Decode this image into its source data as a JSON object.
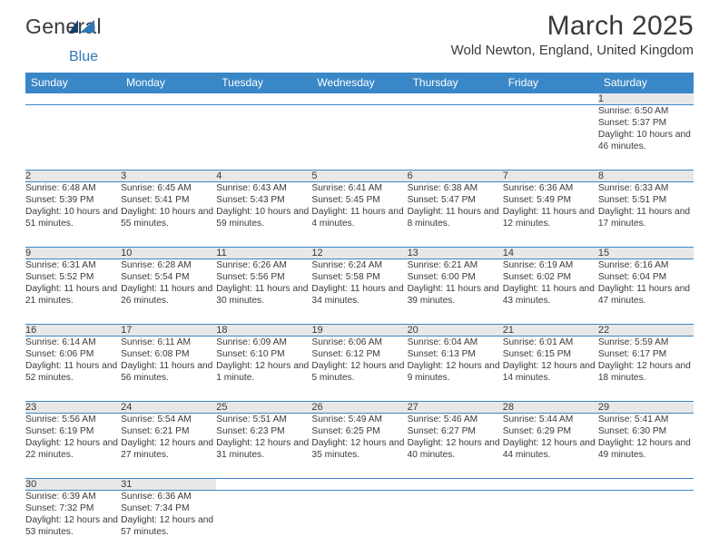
{
  "logo": {
    "text1": "General",
    "text2": "Blue",
    "accentColor": "#2f78b7",
    "darkColor": "#17406a"
  },
  "header": {
    "title": "March 2025",
    "location": "Wold Newton, England, United Kingdom"
  },
  "colors": {
    "headerBg": "#3a87c7",
    "rowBorder": "#3a87c7",
    "dayBg": "#e8e8e8"
  },
  "weekdays": [
    "Sunday",
    "Monday",
    "Tuesday",
    "Wednesday",
    "Thursday",
    "Friday",
    "Saturday"
  ],
  "weeks": [
    [
      null,
      null,
      null,
      null,
      null,
      null,
      {
        "n": "1",
        "sr": "6:50 AM",
        "ss": "5:37 PM",
        "dl": "10 hours and 46 minutes."
      }
    ],
    [
      {
        "n": "2",
        "sr": "6:48 AM",
        "ss": "5:39 PM",
        "dl": "10 hours and 51 minutes."
      },
      {
        "n": "3",
        "sr": "6:45 AM",
        "ss": "5:41 PM",
        "dl": "10 hours and 55 minutes."
      },
      {
        "n": "4",
        "sr": "6:43 AM",
        "ss": "5:43 PM",
        "dl": "10 hours and 59 minutes."
      },
      {
        "n": "5",
        "sr": "6:41 AM",
        "ss": "5:45 PM",
        "dl": "11 hours and 4 minutes."
      },
      {
        "n": "6",
        "sr": "6:38 AM",
        "ss": "5:47 PM",
        "dl": "11 hours and 8 minutes."
      },
      {
        "n": "7",
        "sr": "6:36 AM",
        "ss": "5:49 PM",
        "dl": "11 hours and 12 minutes."
      },
      {
        "n": "8",
        "sr": "6:33 AM",
        "ss": "5:51 PM",
        "dl": "11 hours and 17 minutes."
      }
    ],
    [
      {
        "n": "9",
        "sr": "6:31 AM",
        "ss": "5:52 PM",
        "dl": "11 hours and 21 minutes."
      },
      {
        "n": "10",
        "sr": "6:28 AM",
        "ss": "5:54 PM",
        "dl": "11 hours and 26 minutes."
      },
      {
        "n": "11",
        "sr": "6:26 AM",
        "ss": "5:56 PM",
        "dl": "11 hours and 30 minutes."
      },
      {
        "n": "12",
        "sr": "6:24 AM",
        "ss": "5:58 PM",
        "dl": "11 hours and 34 minutes."
      },
      {
        "n": "13",
        "sr": "6:21 AM",
        "ss": "6:00 PM",
        "dl": "11 hours and 39 minutes."
      },
      {
        "n": "14",
        "sr": "6:19 AM",
        "ss": "6:02 PM",
        "dl": "11 hours and 43 minutes."
      },
      {
        "n": "15",
        "sr": "6:16 AM",
        "ss": "6:04 PM",
        "dl": "11 hours and 47 minutes."
      }
    ],
    [
      {
        "n": "16",
        "sr": "6:14 AM",
        "ss": "6:06 PM",
        "dl": "11 hours and 52 minutes."
      },
      {
        "n": "17",
        "sr": "6:11 AM",
        "ss": "6:08 PM",
        "dl": "11 hours and 56 minutes."
      },
      {
        "n": "18",
        "sr": "6:09 AM",
        "ss": "6:10 PM",
        "dl": "12 hours and 1 minute."
      },
      {
        "n": "19",
        "sr": "6:06 AM",
        "ss": "6:12 PM",
        "dl": "12 hours and 5 minutes."
      },
      {
        "n": "20",
        "sr": "6:04 AM",
        "ss": "6:13 PM",
        "dl": "12 hours and 9 minutes."
      },
      {
        "n": "21",
        "sr": "6:01 AM",
        "ss": "6:15 PM",
        "dl": "12 hours and 14 minutes."
      },
      {
        "n": "22",
        "sr": "5:59 AM",
        "ss": "6:17 PM",
        "dl": "12 hours and 18 minutes."
      }
    ],
    [
      {
        "n": "23",
        "sr": "5:56 AM",
        "ss": "6:19 PM",
        "dl": "12 hours and 22 minutes."
      },
      {
        "n": "24",
        "sr": "5:54 AM",
        "ss": "6:21 PM",
        "dl": "12 hours and 27 minutes."
      },
      {
        "n": "25",
        "sr": "5:51 AM",
        "ss": "6:23 PM",
        "dl": "12 hours and 31 minutes."
      },
      {
        "n": "26",
        "sr": "5:49 AM",
        "ss": "6:25 PM",
        "dl": "12 hours and 35 minutes."
      },
      {
        "n": "27",
        "sr": "5:46 AM",
        "ss": "6:27 PM",
        "dl": "12 hours and 40 minutes."
      },
      {
        "n": "28",
        "sr": "5:44 AM",
        "ss": "6:29 PM",
        "dl": "12 hours and 44 minutes."
      },
      {
        "n": "29",
        "sr": "5:41 AM",
        "ss": "6:30 PM",
        "dl": "12 hours and 49 minutes."
      }
    ],
    [
      {
        "n": "30",
        "sr": "6:39 AM",
        "ss": "7:32 PM",
        "dl": "12 hours and 53 minutes."
      },
      {
        "n": "31",
        "sr": "6:36 AM",
        "ss": "7:34 PM",
        "dl": "12 hours and 57 minutes."
      },
      null,
      null,
      null,
      null,
      null
    ]
  ],
  "labels": {
    "sunrise": "Sunrise: ",
    "sunset": "Sunset: ",
    "daylight": "Daylight: "
  }
}
